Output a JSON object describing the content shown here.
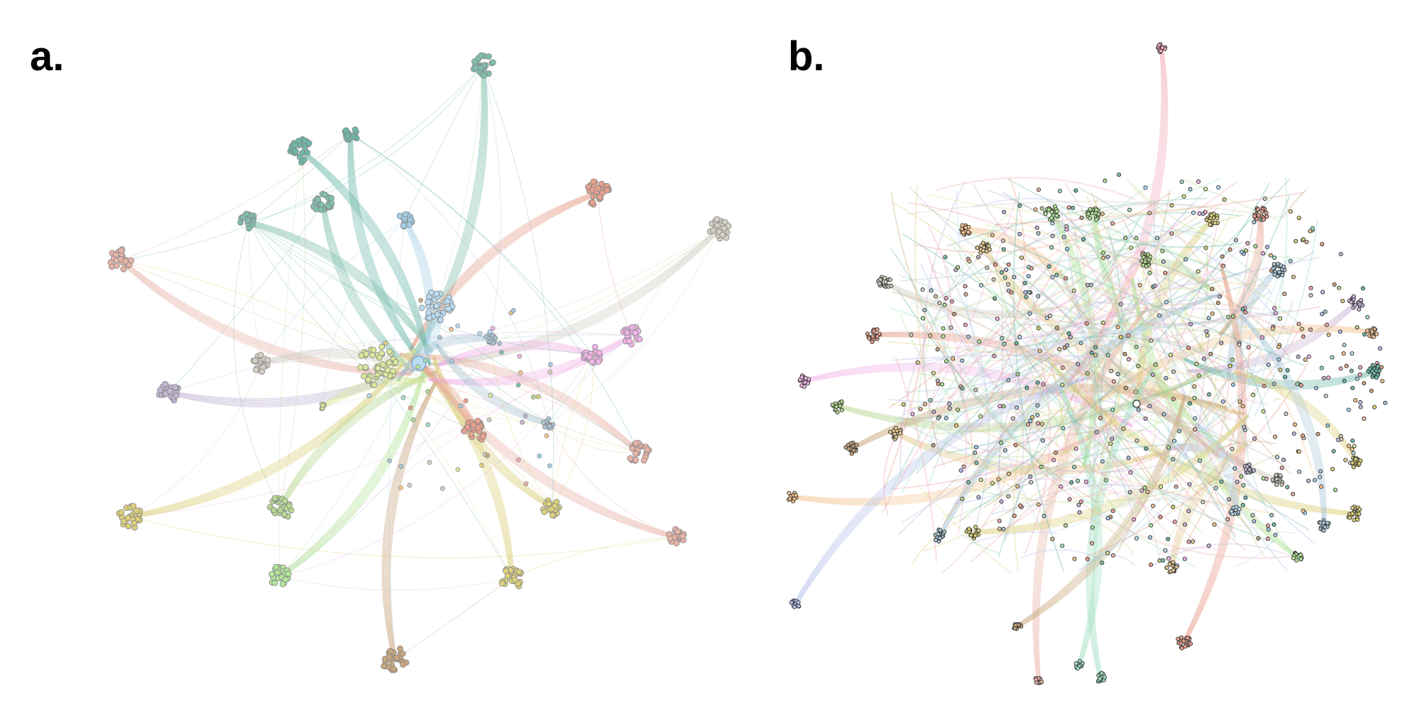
{
  "panels": {
    "a": {
      "label": "a."
    },
    "b": {
      "label": "b."
    }
  },
  "colors": {
    "community_palette": [
      "#7fbfae",
      "#6bb8a9",
      "#c9b2d3",
      "#a3d0e6",
      "#d9e89a",
      "#b9dcf3",
      "#e8a08c",
      "#d3d0c3",
      "#e9b3a7",
      "#c2b6d4",
      "#b6c1ea",
      "#b3e59a",
      "#e4c98f",
      "#dcd07a",
      "#a9c7d6",
      "#f2b4e8",
      "#c9a67d",
      "#b5d78f",
      "#f5c48f",
      "#f1a7b8",
      "#a1e0c4"
    ],
    "node_stroke_a": "#8a8a8a",
    "node_stroke_b": "#333333",
    "background": "#ffffff"
  }
}
